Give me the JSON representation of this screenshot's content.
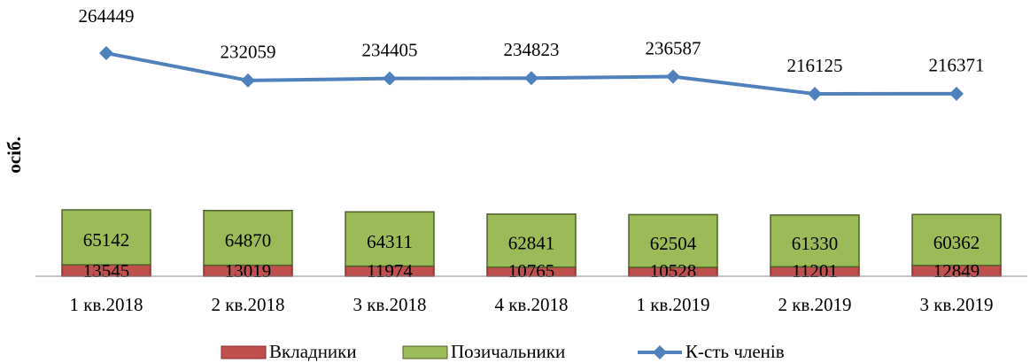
{
  "chart_data": {
    "type": "bar-line",
    "y_label": "осіб.",
    "categories": [
      "1 кв.2018",
      "2 кв.2018",
      "3 кв.2018",
      "4 кв.2018",
      "1 кв.2019",
      "2 кв.2019",
      "3 кв.2019"
    ],
    "series": [
      {
        "name": "Вкладники",
        "type": "bar",
        "color": "#c0504d",
        "values": [
          13545,
          13019,
          11974,
          10765,
          10528,
          11201,
          12849
        ]
      },
      {
        "name": "Позичальники",
        "type": "bar",
        "color": "#9bbb59",
        "values": [
          65142,
          64870,
          64311,
          62841,
          62504,
          61330,
          60362
        ]
      },
      {
        "name": "К-сть членів",
        "type": "line",
        "color": "#4f81bd",
        "values": [
          264449,
          232059,
          234405,
          234823,
          236587,
          216125,
          216371
        ]
      }
    ],
    "legend": "bottom"
  }
}
